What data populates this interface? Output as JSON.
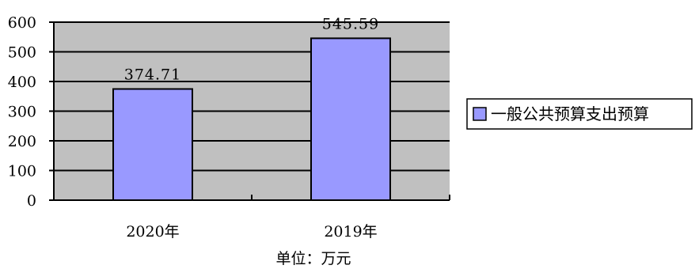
{
  "chart_data": {
    "type": "bar",
    "categories": [
      "2020年",
      "2019年"
    ],
    "series": [
      {
        "name": "一般公共预算支出预算",
        "values": [
          374.71,
          545.59
        ]
      }
    ],
    "data_labels": [
      "374.71",
      "545.59"
    ],
    "ylim": [
      0,
      600
    ],
    "yticks": [
      0,
      100,
      200,
      300,
      400,
      500,
      600
    ],
    "xlabel": "单位：万元",
    "ylabel": "",
    "grid": true,
    "legend_position": "right",
    "colors": {
      "plot_background": "#c0c0c0",
      "bar_fill": "#9999ff",
      "bar_stroke": "#000000",
      "gridline": "#000000"
    }
  }
}
